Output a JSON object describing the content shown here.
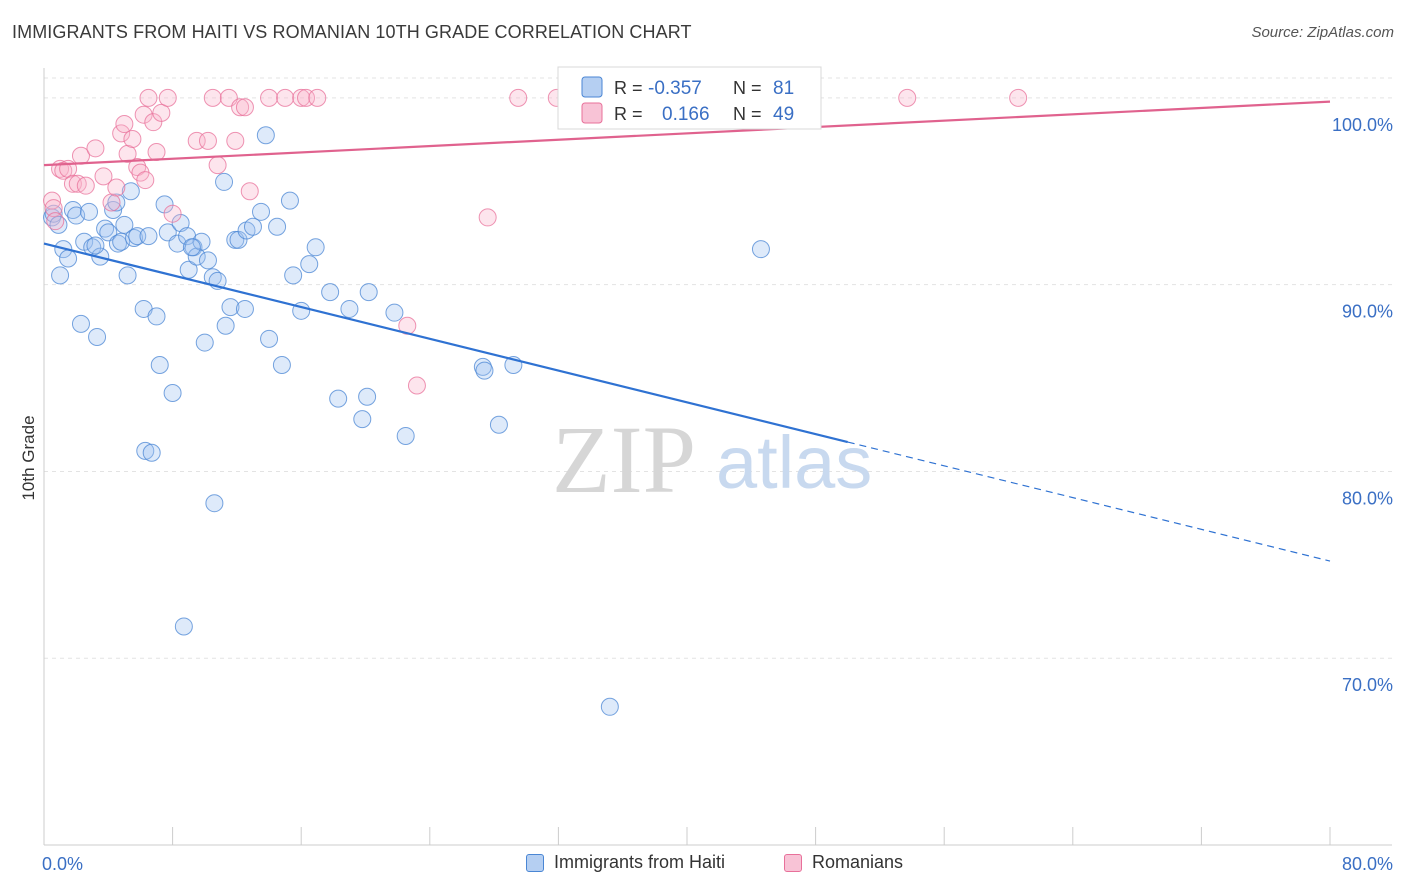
{
  "title": "IMMIGRANTS FROM HAITI VS ROMANIAN 10TH GRADE CORRELATION CHART",
  "source": "Source: ZipAtlas.com",
  "watermark": {
    "zip": "ZIP",
    "atlas": "atlas"
  },
  "colors": {
    "blue": "#4a86d4",
    "blue_fill": "rgba(160,196,240,0.35)",
    "pink": "#e8709a",
    "pink_fill": "rgba(248,180,204,0.35)",
    "axis_text": "#3a6fc4",
    "grid": "#e3e3e3"
  },
  "chart_data": {
    "type": "scatter",
    "xlabel": "",
    "ylabel": "10th Grade",
    "xlim": [
      0,
      80
    ],
    "ylim": [
      60,
      101.6
    ],
    "x_tick_labels": [
      "0.0%",
      "80.0%"
    ],
    "y_ticks": [
      70,
      80,
      90,
      100
    ],
    "y_tick_labels": [
      "70.0%",
      "80.0%",
      "90.0%",
      "100.0%"
    ],
    "grid": true,
    "legend_position": "top-center",
    "stats": [
      {
        "r_label": "R =",
        "r": "-0.357",
        "n_label": "N =",
        "n": "81"
      },
      {
        "r_label": "R =",
        "r": "0.166",
        "n_label": "N =",
        "n": "49"
      }
    ],
    "series": [
      {
        "name": "Immigrants from Haiti",
        "color": "blue",
        "trend": {
          "x": [
            0,
            50,
            80
          ],
          "y": [
            92.2,
            81.6,
            75.2
          ],
          "solid_until": 50
        },
        "points": [
          [
            0.5,
            93.6
          ],
          [
            0.6,
            93.8
          ],
          [
            1.0,
            90.5
          ],
          [
            1.2,
            91.9
          ],
          [
            1.5,
            91.4
          ],
          [
            1.8,
            94.0
          ],
          [
            2.0,
            93.7
          ],
          [
            2.3,
            87.9
          ],
          [
            2.5,
            92.3
          ],
          [
            2.8,
            93.9
          ],
          [
            3.0,
            92.0
          ],
          [
            3.3,
            87.2
          ],
          [
            3.5,
            91.5
          ],
          [
            3.8,
            93.0
          ],
          [
            4.0,
            92.8
          ],
          [
            4.3,
            94.0
          ],
          [
            4.5,
            94.4
          ],
          [
            4.6,
            92.2
          ],
          [
            4.8,
            92.3
          ],
          [
            5.0,
            93.2
          ],
          [
            5.2,
            90.5
          ],
          [
            5.4,
            95.0
          ],
          [
            5.6,
            92.5
          ],
          [
            5.8,
            92.6
          ],
          [
            6.2,
            88.7
          ],
          [
            6.5,
            92.6
          ],
          [
            7.0,
            88.3
          ],
          [
            7.2,
            85.7
          ],
          [
            7.5,
            94.3
          ],
          [
            7.7,
            92.8
          ],
          [
            8.0,
            84.2
          ],
          [
            8.3,
            92.2
          ],
          [
            8.5,
            93.3
          ],
          [
            8.9,
            92.6
          ],
          [
            9.0,
            90.8
          ],
          [
            9.3,
            92.0
          ],
          [
            9.5,
            91.5
          ],
          [
            9.8,
            92.3
          ],
          [
            10.0,
            86.9
          ],
          [
            10.2,
            91.3
          ],
          [
            10.5,
            90.4
          ],
          [
            10.8,
            90.2
          ],
          [
            11.2,
            95.5
          ],
          [
            11.3,
            87.8
          ],
          [
            11.6,
            88.8
          ],
          [
            11.9,
            92.4
          ],
          [
            12.1,
            92.4
          ],
          [
            12.5,
            88.7
          ],
          [
            12.6,
            92.9
          ],
          [
            13.0,
            93.1
          ],
          [
            13.5,
            93.9
          ],
          [
            13.8,
            98.0
          ],
          [
            14.0,
            87.1
          ],
          [
            14.5,
            93.1
          ],
          [
            14.8,
            85.7
          ],
          [
            15.3,
            94.5
          ],
          [
            15.5,
            90.5
          ],
          [
            16.0,
            88.6
          ],
          [
            16.5,
            91.1
          ],
          [
            16.9,
            92.0
          ],
          [
            17.8,
            89.6
          ],
          [
            18.3,
            83.9
          ],
          [
            19.0,
            88.7
          ],
          [
            19.8,
            82.8
          ],
          [
            20.1,
            84.0
          ],
          [
            20.2,
            89.6
          ],
          [
            21.8,
            88.5
          ],
          [
            22.5,
            81.9
          ],
          [
            27.3,
            85.6
          ],
          [
            27.4,
            85.4
          ],
          [
            28.3,
            82.5
          ],
          [
            29.2,
            85.7
          ],
          [
            6.3,
            81.1
          ],
          [
            6.7,
            81.0
          ],
          [
            10.6,
            78.3
          ],
          [
            8.7,
            71.7
          ],
          [
            35.2,
            67.4
          ],
          [
            44.6,
            91.9
          ],
          [
            0.9,
            93.2
          ],
          [
            3.2,
            92.1
          ],
          [
            9.2,
            92.0
          ]
        ]
      },
      {
        "name": "Romanians",
        "color": "pink",
        "trend": {
          "x": [
            0,
            80
          ],
          "y": [
            96.4,
            99.8
          ]
        },
        "points": [
          [
            0.5,
            94.5
          ],
          [
            0.6,
            94.1
          ],
          [
            0.7,
            93.4
          ],
          [
            1.0,
            96.2
          ],
          [
            1.2,
            96.1
          ],
          [
            1.5,
            96.2
          ],
          [
            1.8,
            95.4
          ],
          [
            2.1,
            95.4
          ],
          [
            2.3,
            96.9
          ],
          [
            2.6,
            95.3
          ],
          [
            3.2,
            97.3
          ],
          [
            3.7,
            95.8
          ],
          [
            4.2,
            94.4
          ],
          [
            4.5,
            95.2
          ],
          [
            4.8,
            98.1
          ],
          [
            5.0,
            98.6
          ],
          [
            5.2,
            97.0
          ],
          [
            5.5,
            97.8
          ],
          [
            5.8,
            96.3
          ],
          [
            6.0,
            96.0
          ],
          [
            6.2,
            99.1
          ],
          [
            6.3,
            95.6
          ],
          [
            6.5,
            100.0
          ],
          [
            6.8,
            98.7
          ],
          [
            7.0,
            97.1
          ],
          [
            7.3,
            99.2
          ],
          [
            7.7,
            100.0
          ],
          [
            8.0,
            93.8
          ],
          [
            9.5,
            97.7
          ],
          [
            10.2,
            97.7
          ],
          [
            10.5,
            100.0
          ],
          [
            10.8,
            96.4
          ],
          [
            11.5,
            100.0
          ],
          [
            11.9,
            97.7
          ],
          [
            12.2,
            99.5
          ],
          [
            12.5,
            99.5
          ],
          [
            12.8,
            95.0
          ],
          [
            14.0,
            100.0
          ],
          [
            15.0,
            100.0
          ],
          [
            16.0,
            100.0
          ],
          [
            16.3,
            100.0
          ],
          [
            17.0,
            100.0
          ],
          [
            22.6,
            87.8
          ],
          [
            23.2,
            84.6
          ],
          [
            27.6,
            93.6
          ],
          [
            29.5,
            100.0
          ],
          [
            31.9,
            100.0
          ],
          [
            53.7,
            100.0
          ],
          [
            60.6,
            100.0
          ]
        ]
      }
    ]
  }
}
